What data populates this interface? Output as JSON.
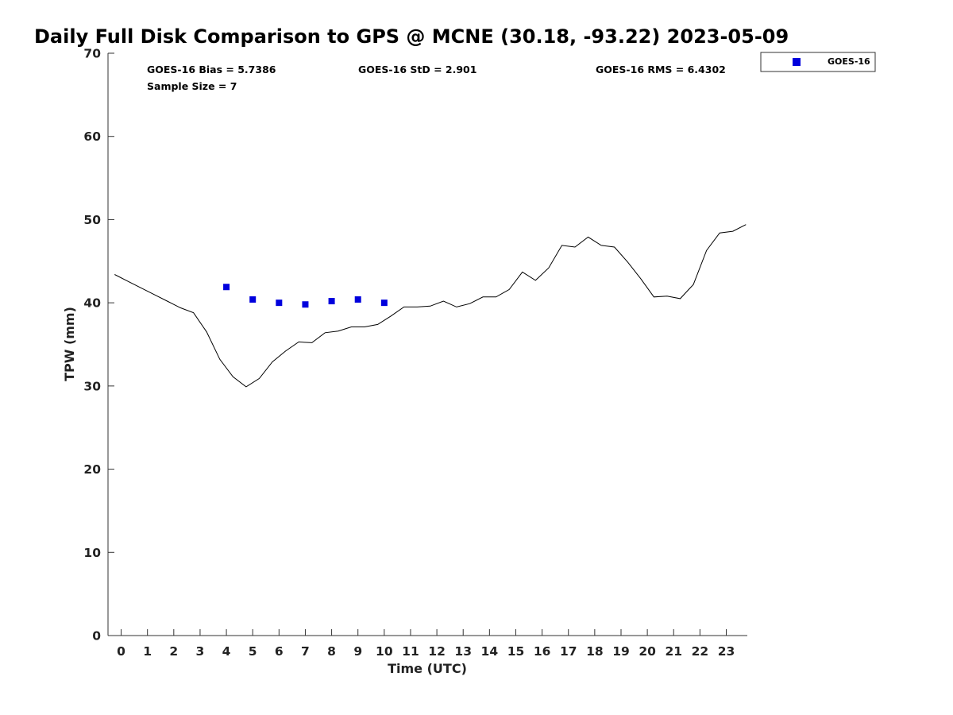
{
  "chart_data": {
    "type": "scatter",
    "title": "Daily Full Disk Comparison to GPS @ MCNE (30.18, -93.22) 2023-05-09",
    "xlabel": "Time (UTC)",
    "ylabel": "TPW (mm)",
    "xlim": [
      -0.5,
      23.8
    ],
    "ylim": [
      0,
      70
    ],
    "x_ticks": [
      0,
      1,
      2,
      3,
      4,
      5,
      6,
      7,
      8,
      9,
      10,
      11,
      12,
      13,
      14,
      15,
      16,
      17,
      18,
      19,
      20,
      21,
      22,
      23
    ],
    "y_ticks": [
      0,
      10,
      20,
      30,
      40,
      50,
      60,
      70
    ],
    "grid": false,
    "legend_position": "top-right",
    "stats": {
      "bias": "GOES-16 Bias = 5.7386",
      "std": "GOES-16 StD = 2.901",
      "rms": "GOES-16 RMS = 6.4302",
      "sample_size": "Sample Size = 7"
    },
    "series": [
      {
        "name": "GOES-16",
        "kind": "scatter",
        "color": "#0000dd",
        "x": [
          4.0,
          5.0,
          6.0,
          7.0,
          8.0,
          9.0,
          10.0
        ],
        "y": [
          41.9,
          40.4,
          40.0,
          39.8,
          40.2,
          40.4,
          40.0
        ]
      },
      {
        "kind": "line",
        "color": "#000000",
        "x": [
          -0.25,
          0.25,
          0.75,
          1.25,
          1.75,
          2.25,
          2.75,
          3.25,
          3.75,
          4.25,
          4.75,
          5.25,
          5.75,
          6.25,
          6.75,
          7.25,
          7.75,
          8.25,
          8.75,
          9.25,
          9.75,
          10.25,
          10.75,
          11.25,
          11.75,
          12.25,
          12.75,
          13.25,
          13.75,
          14.25,
          14.75,
          15.25,
          15.75,
          16.25,
          16.75,
          17.25,
          17.75,
          18.25,
          18.75,
          19.25,
          19.75,
          20.25,
          20.75,
          21.25,
          21.75,
          22.25,
          22.75,
          23.25,
          23.75
        ],
        "y": [
          43.4,
          42.6,
          41.8,
          41.0,
          40.2,
          39.4,
          38.8,
          36.5,
          33.2,
          31.1,
          29.9,
          30.9,
          32.9,
          34.2,
          35.3,
          35.2,
          36.4,
          36.6,
          37.1,
          37.1,
          37.4,
          38.4,
          39.5,
          39.5,
          39.6,
          40.2,
          39.5,
          39.9,
          40.7,
          40.7,
          41.6,
          43.7,
          42.7,
          44.2,
          46.9,
          46.7,
          47.9,
          46.9,
          46.7,
          44.9,
          42.9,
          40.7,
          40.8,
          40.5,
          42.2,
          46.3,
          48.4,
          48.6,
          49.4
        ]
      }
    ]
  }
}
